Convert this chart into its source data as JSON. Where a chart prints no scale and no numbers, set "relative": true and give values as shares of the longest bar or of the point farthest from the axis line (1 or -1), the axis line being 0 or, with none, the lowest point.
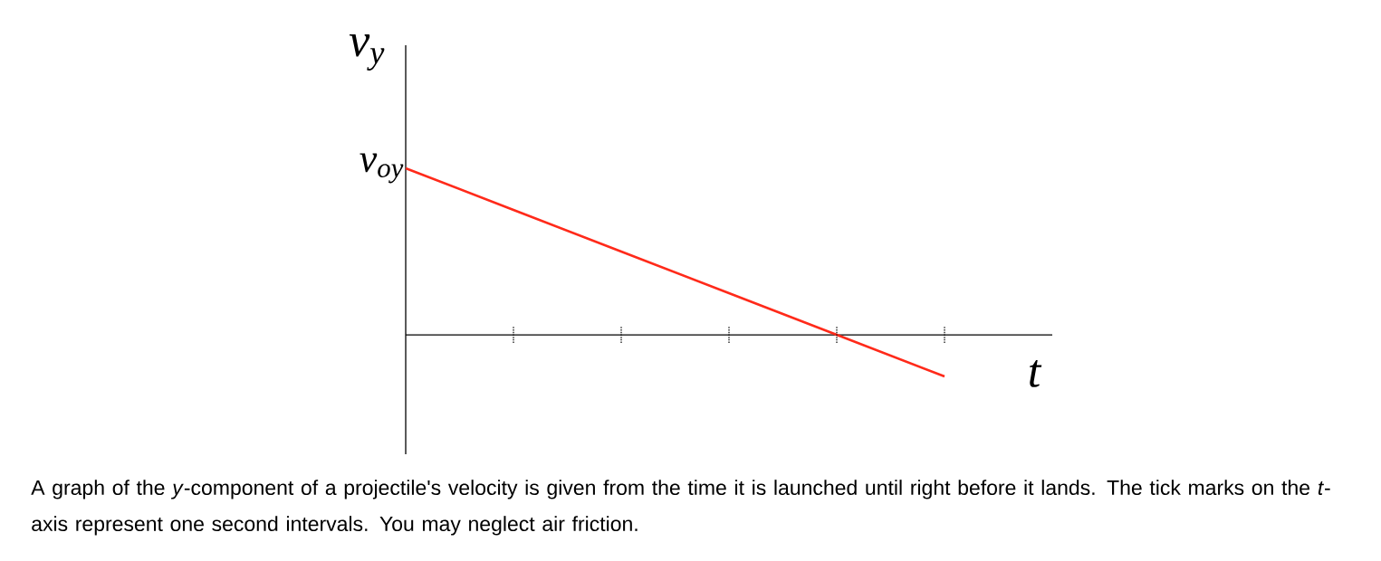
{
  "chart_data": {
    "type": "line",
    "relative": true,
    "xlabel": "t",
    "ylabel": "v$_{y}$",
    "categories": [
      null,
      null,
      null,
      null,
      null,
      null
    ],
    "series": [
      {
        "color": "#ff2a1a",
        "values": [
          1,
          0.75,
          0.5,
          0.25,
          0,
          -0.25
        ]
      }
    ],
    "annotations": [
      "v$_{oy}$",
      "A graph of the *y*-component of a projectile's velocity is given from the time it is launched until right before it lands. The tick marks on the *t*-axis represent one second intervals. You may neglect air friction."
    ]
  }
}
